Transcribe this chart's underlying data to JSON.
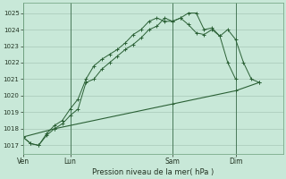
{
  "title": "Pression niveau de la mer( hPa )",
  "bg_color": "#c8e8d8",
  "grid_color": "#a8c8b8",
  "line_color": "#2a6035",
  "ylim": [
    1016.5,
    1025.6
  ],
  "yticks": [
    1017,
    1018,
    1019,
    1020,
    1021,
    1022,
    1023,
    1024,
    1025
  ],
  "xtick_labels": [
    "Ven",
    "Lun",
    "Sam",
    "Dim"
  ],
  "xtick_positions": [
    0,
    6,
    19,
    27
  ],
  "vlines": [
    0,
    6,
    19,
    27
  ],
  "xlim": [
    0,
    33
  ],
  "series1_x": [
    0,
    1,
    2,
    3,
    4,
    5,
    6,
    7,
    8,
    9,
    10,
    11,
    12,
    13,
    14,
    15,
    16,
    17,
    18,
    19,
    20,
    21,
    22,
    23,
    24,
    25,
    26,
    27,
    28,
    29,
    30
  ],
  "series1_y": [
    1017.5,
    1017.1,
    1017.0,
    1017.6,
    1018.0,
    1018.3,
    1018.8,
    1019.2,
    1020.8,
    1021.0,
    1021.6,
    1022.0,
    1022.4,
    1022.8,
    1023.1,
    1023.5,
    1024.0,
    1024.2,
    1024.7,
    1024.5,
    1024.7,
    1024.3,
    1023.8,
    1023.7,
    1024.0,
    1023.6,
    1024.0,
    1023.4,
    1022.0,
    1021.0,
    1020.8
  ],
  "series2_x": [
    0,
    1,
    2,
    3,
    4,
    5,
    6,
    7,
    8,
    9,
    10,
    11,
    12,
    13,
    14,
    15,
    16,
    17,
    18,
    19,
    20,
    21,
    22,
    23,
    24,
    25,
    26,
    27
  ],
  "series2_y": [
    1017.5,
    1017.1,
    1017.0,
    1017.7,
    1018.2,
    1018.5,
    1019.2,
    1019.8,
    1021.0,
    1021.8,
    1022.2,
    1022.5,
    1022.8,
    1023.2,
    1023.7,
    1024.0,
    1024.5,
    1024.7,
    1024.5,
    1024.5,
    1024.7,
    1025.0,
    1025.0,
    1024.0,
    1024.1,
    1023.6,
    1022.0,
    1021.0
  ],
  "series3_x": [
    0,
    4,
    19,
    27,
    30
  ],
  "series3_y": [
    1017.5,
    1018.0,
    1019.5,
    1020.3,
    1020.8
  ]
}
